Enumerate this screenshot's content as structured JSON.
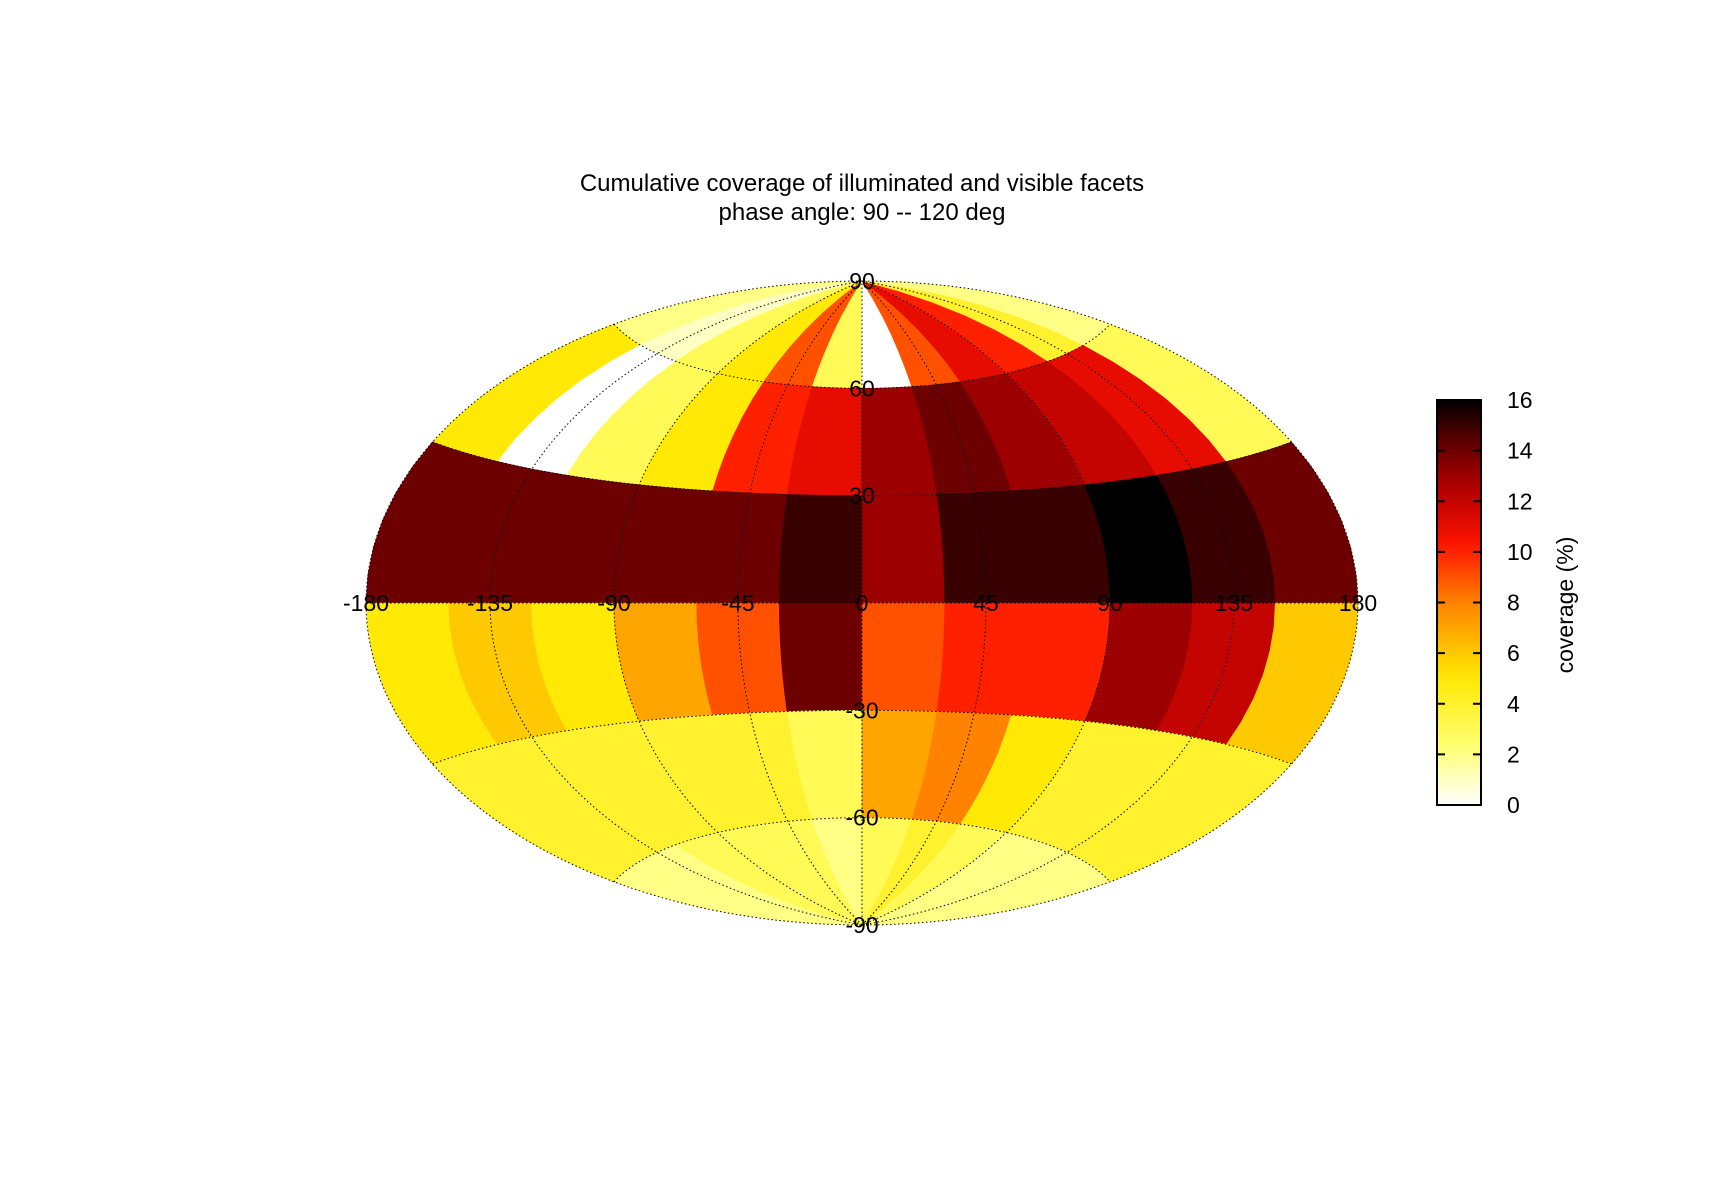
{
  "chart_data": {
    "type": "heatmap",
    "projection": "aitoff",
    "title": "Cumulative coverage of illuminated and visible facets",
    "subtitle": "phase angle:  90 -- 120 deg",
    "x_ticks": [
      "-180",
      "-135",
      "-90",
      "-45",
      "0",
      "45",
      "90",
      "135",
      "180"
    ],
    "y_ticks": [
      "90",
      "60",
      "30",
      "-30",
      "-60",
      "-90"
    ],
    "xlim": [
      -180,
      180
    ],
    "ylim": [
      -90,
      90
    ],
    "grid": true,
    "colorbar": {
      "label": "coverage (%)",
      "range": [
        0,
        16
      ],
      "ticks": [
        "0",
        "2",
        "4",
        "6",
        "8",
        "10",
        "12",
        "14",
        "16"
      ],
      "colormap": "hot_reversed",
      "colors": [
        "#ffffff",
        "#ffff60",
        "#ffe000",
        "#ff8000",
        "#ff1000",
        "#b00000",
        "#400000",
        "#000000"
      ]
    },
    "lon_bins": [
      -165,
      -135,
      -105,
      -75,
      -45,
      -15,
      15,
      45,
      75,
      105,
      135,
      165
    ],
    "lat_bins": [
      75,
      45,
      15,
      -15,
      -45,
      -75
    ],
    "values": [
      [
        2,
        1,
        3,
        5,
        9,
        3,
        0,
        9,
        11,
        10,
        4,
        2
      ],
      [
        5,
        0,
        3,
        5,
        10,
        11,
        13,
        14,
        13,
        12,
        11,
        3
      ],
      [
        14,
        14,
        14,
        14,
        14,
        15,
        13,
        15,
        15,
        16,
        15,
        14
      ],
      [
        5,
        6,
        5,
        7,
        9,
        14,
        9,
        10,
        10,
        13,
        12,
        6
      ],
      [
        4,
        4,
        4,
        4,
        4,
        3,
        7,
        8,
        5,
        4,
        4,
        4
      ],
      [
        2,
        2,
        3,
        3,
        3,
        2,
        3,
        4,
        3,
        2,
        2,
        2
      ]
    ]
  }
}
